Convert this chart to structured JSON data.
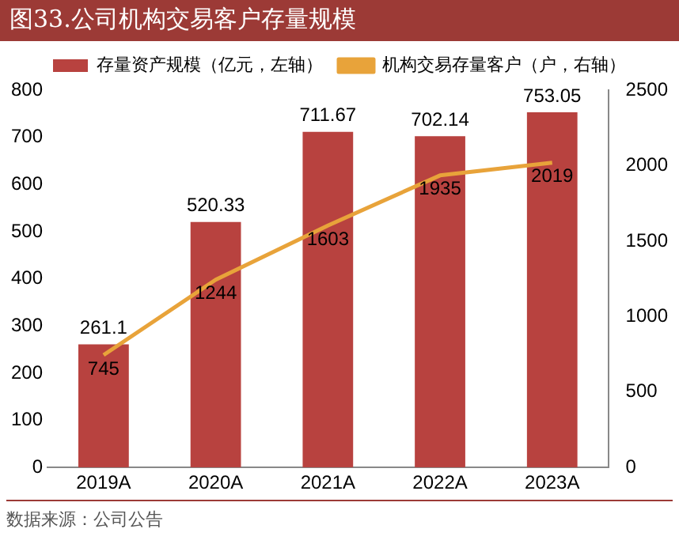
{
  "chart_data": {
    "type": "bar",
    "title": "图33.公司机构交易客户存量规模",
    "categories": [
      "2019A",
      "2020A",
      "2021A",
      "2022A",
      "2023A"
    ],
    "series": [
      {
        "name": "存量资产规模（亿元，左轴）",
        "color": "#b8423f",
        "values": [
          261.1,
          520.33,
          711.67,
          702.14,
          753.05
        ]
      },
      {
        "name": "机构交易存量客户（户，右轴）",
        "type": "line",
        "axis": "y2",
        "color": "#e8a33a",
        "values": [
          745,
          1244,
          1603,
          1935,
          2019
        ]
      }
    ],
    "ylim": [
      0,
      800
    ],
    "yticks": [
      0,
      100,
      200,
      300,
      400,
      500,
      600,
      700,
      800
    ],
    "y2lim": [
      0,
      2500
    ],
    "y2ticks": [
      0,
      500,
      1000,
      1500,
      2000,
      2500
    ],
    "data_labels": true,
    "legend": "top",
    "grid": false,
    "marker": "none",
    "annotations": [
      "数据来源：公司公告"
    ]
  }
}
